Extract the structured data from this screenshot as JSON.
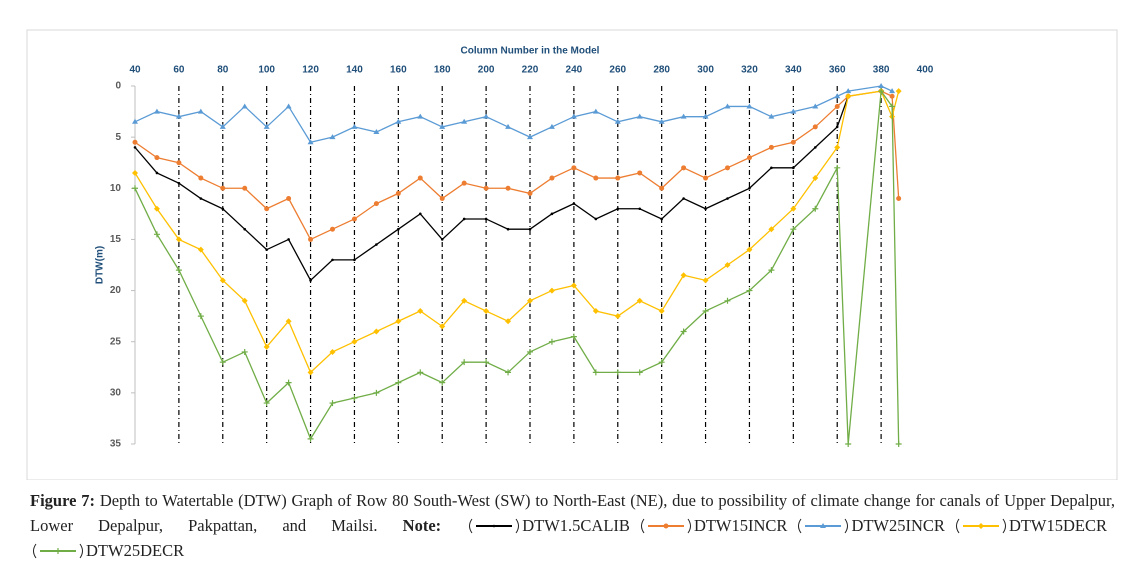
{
  "chart_data": {
    "type": "line",
    "x_label": "Column Number in the  Model",
    "y_label": "DTW(m)",
    "xlim": [
      40,
      400
    ],
    "ylim": [
      0,
      35
    ],
    "y_inverted": true,
    "x_grid": true,
    "xticks": [
      40,
      60,
      80,
      100,
      120,
      140,
      160,
      180,
      200,
      220,
      240,
      260,
      280,
      300,
      320,
      340,
      360,
      380,
      400
    ],
    "yticks": [
      0,
      5,
      10,
      15,
      20,
      25,
      30,
      35
    ],
    "x": [
      40,
      50,
      60,
      70,
      80,
      90,
      100,
      110,
      120,
      130,
      140,
      150,
      160,
      170,
      180,
      190,
      200,
      210,
      220,
      230,
      240,
      250,
      260,
      270,
      280,
      290,
      300,
      310,
      320,
      330,
      340,
      350,
      360,
      365,
      380,
      385,
      388
    ],
    "series": [
      {
        "name": "DTW1.5CALIB",
        "color": "#000000",
        "marker": "dot",
        "values": [
          6,
          8.5,
          9.5,
          11,
          12,
          14,
          16,
          15,
          19,
          17,
          17,
          15.5,
          14,
          12.5,
          15,
          13,
          13,
          14,
          14,
          12.5,
          11.5,
          13,
          12,
          12,
          13,
          11,
          12,
          11,
          10,
          8,
          8,
          6,
          4,
          1,
          null,
          null,
          null
        ]
      },
      {
        "name": "DTW15INCR",
        "color": "#ed7d31",
        "marker": "circle",
        "values": [
          5.5,
          7,
          7.5,
          9,
          10,
          10,
          12,
          11,
          15,
          14,
          13,
          11.5,
          10.5,
          9,
          11,
          9.5,
          10,
          10,
          10.5,
          9,
          8,
          9,
          9,
          8.5,
          10,
          8,
          9,
          8,
          7,
          6,
          5.5,
          4,
          2,
          1,
          0.5,
          1,
          11
        ]
      },
      {
        "name": "DTW25INCR",
        "color": "#5b9bd5",
        "marker": "triangle",
        "values": [
          3.5,
          2.5,
          3,
          2.5,
          4,
          2,
          4,
          2,
          5.5,
          5,
          4,
          4.5,
          3.5,
          3,
          4,
          3.5,
          3,
          4,
          5,
          4,
          3,
          2.5,
          3.5,
          3,
          3.5,
          3,
          3,
          2,
          2,
          3,
          2.5,
          2,
          1,
          0.5,
          0,
          0.5,
          null
        ]
      },
      {
        "name": "DTW15DECR",
        "color": "#ffc000",
        "marker": "diamond",
        "values": [
          8.5,
          12,
          15,
          16,
          19,
          21,
          25.5,
          23,
          28,
          26,
          25,
          24,
          23,
          22,
          23.5,
          21,
          22,
          23,
          21,
          20,
          19.5,
          22,
          22.5,
          21,
          22,
          18.5,
          19,
          17.5,
          16,
          14,
          12,
          9,
          6,
          1,
          0.5,
          3,
          0.5
        ]
      },
      {
        "name": "DTW25DECR",
        "color": "#70ad47",
        "marker": "plus",
        "values": [
          10,
          14.5,
          18,
          22.5,
          27,
          26,
          31,
          29,
          34.5,
          31,
          30.5,
          30,
          29,
          28,
          29,
          27,
          27,
          28,
          26,
          25,
          24.5,
          28,
          28,
          28,
          27,
          24,
          22,
          21,
          20,
          18,
          14,
          12,
          8,
          35,
          0.5,
          2,
          35
        ]
      }
    ]
  },
  "caption": {
    "label": "Figure 7:",
    "text": "Depth to Watertable (DTW) Graph of Row 80 South-West (SW) to North-East (NE), due to possibility of climate change for canals of Upper Depalpur, Lower Depalpur, Pakpattan, and Mailsi.",
    "note": "Note:"
  }
}
